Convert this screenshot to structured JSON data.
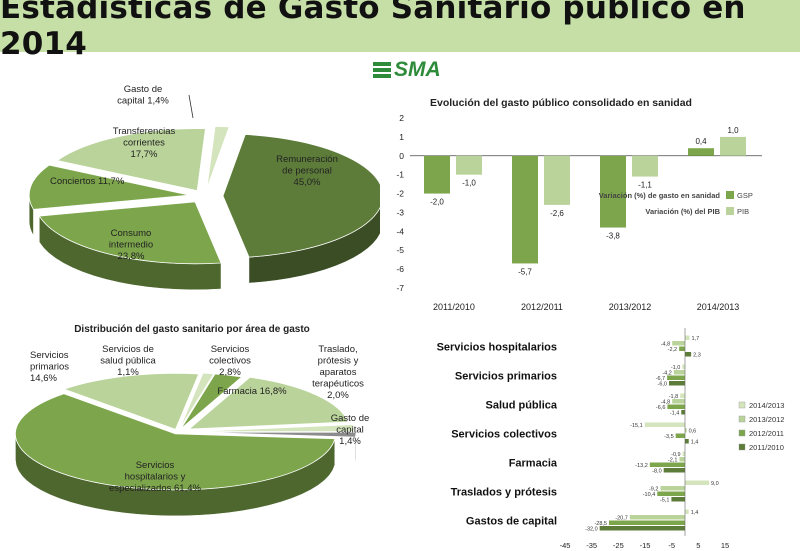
{
  "page_title": "Estadísticas de Gasto Sanitario público en 2014",
  "logo": {
    "text": "SMA",
    "icon": "stacked-bars-logo-icon"
  },
  "colors": {
    "dark": "#5d7c3a",
    "mid": "#7da64c",
    "light": "#b9d39a",
    "pale": "#d4e5bd",
    "grey": "#8c8c8c"
  },
  "chart_data": [
    {
      "type": "pie",
      "title": "",
      "slices": [
        {
          "label": "Remuneración de personal 45,0%",
          "value": 45.0
        },
        {
          "label": "Consumo intermedio 23,8%",
          "value": 23.8
        },
        {
          "label": "Conciertos 11,7%",
          "value": 11.7
        },
        {
          "label": "Transferencias corrientes 17,7%",
          "value": 17.7
        },
        {
          "label": "Gasto de capital 1,4%",
          "value": 1.4
        }
      ]
    },
    {
      "type": "bar",
      "title": "Evolución del gasto público consolidado en sanidad",
      "categories": [
        "2011/2010",
        "2012/2011",
        "2013/2012",
        "2014/2013"
      ],
      "series": [
        {
          "name": "GSP",
          "legend_label": "Variación (%) de gasto en sanidad",
          "values": [
            -2.0,
            -5.7,
            -3.8,
            0.4
          ],
          "value_labels": [
            "-2,0",
            "-5,7",
            "-3,8",
            "0,4"
          ]
        },
        {
          "name": "PIB",
          "legend_label": "Variación (%) del PIB",
          "values": [
            -1.0,
            -2.6,
            -1.1,
            1.0
          ],
          "value_labels": [
            "-1,0",
            "-2,6",
            "-1,1",
            "1,0"
          ]
        }
      ],
      "ylim": [
        -7,
        2
      ],
      "yticks": [
        2,
        1,
        0,
        -1,
        -2,
        -3,
        -4,
        -5,
        -6,
        -7
      ],
      "legend": "right"
    },
    {
      "type": "pie",
      "title": "Distribución del gasto sanitario por área de gasto",
      "slices": [
        {
          "label": "Servicios hospitalarios y especializados 61,4%",
          "value": 61.4
        },
        {
          "label": "Servicios primarios 14,6%",
          "value": 14.6
        },
        {
          "label": "Servicios de salud pública 1,1%",
          "value": 1.1
        },
        {
          "label": "Servicios colectivos 2,8%",
          "value": 2.8
        },
        {
          "label": "Farmacia 16,8%",
          "value": 16.8
        },
        {
          "label": "Traslado, prótesis y aparatos terapéuticos 2,0%",
          "value": 2.0
        },
        {
          "label": "Gasto de capital 1,4%",
          "value": 1.4
        }
      ]
    },
    {
      "type": "bar",
      "orientation": "horizontal",
      "categories": [
        "Servicios hospitalarios",
        "Servicios primarios",
        "Salud pública",
        "Servicios colectivos",
        "Farmacia",
        "Traslados y prótesis",
        "Gastos de capital"
      ],
      "series": [
        {
          "name": "2014/2013",
          "values": [
            1.7,
            -1.0,
            -1.8,
            -15.1,
            -0.9,
            9.0,
            1.4
          ],
          "value_labels": [
            "1,7",
            "-1,0",
            "-1,8",
            "-15,1",
            "-0,9",
            "9,0",
            "1,4"
          ]
        },
        {
          "name": "2013/2012",
          "values": [
            -4.8,
            -4.2,
            -4.8,
            0.6,
            -2.1,
            -9.2,
            -20.7
          ],
          "value_labels": [
            "-4,8",
            "-4,2",
            "-4,8",
            "0,6",
            "-2,1",
            "-9,2",
            "-20,7"
          ]
        },
        {
          "name": "2012/2011",
          "values": [
            -2.2,
            -6.7,
            -6.6,
            -3.5,
            -13.2,
            -10.4,
            -28.5
          ],
          "value_labels": [
            "-2,2",
            "-6,7",
            "-6,6",
            "-3,5",
            "-13,2",
            "-10,4",
            "-28,5"
          ]
        },
        {
          "name": "2011/2010",
          "values": [
            2.3,
            -6.0,
            -1.4,
            1.4,
            -8.0,
            -5.1,
            -32.0
          ],
          "value_labels": [
            "2,3",
            "-6,0",
            "-1,4",
            "1,4",
            "-8,0",
            "-5,1",
            "-32,0"
          ]
        }
      ],
      "xlim": [
        -45,
        15
      ],
      "xticks": [
        -45,
        -35,
        -25,
        -15,
        -5,
        5,
        15
      ],
      "legend": "right"
    }
  ]
}
